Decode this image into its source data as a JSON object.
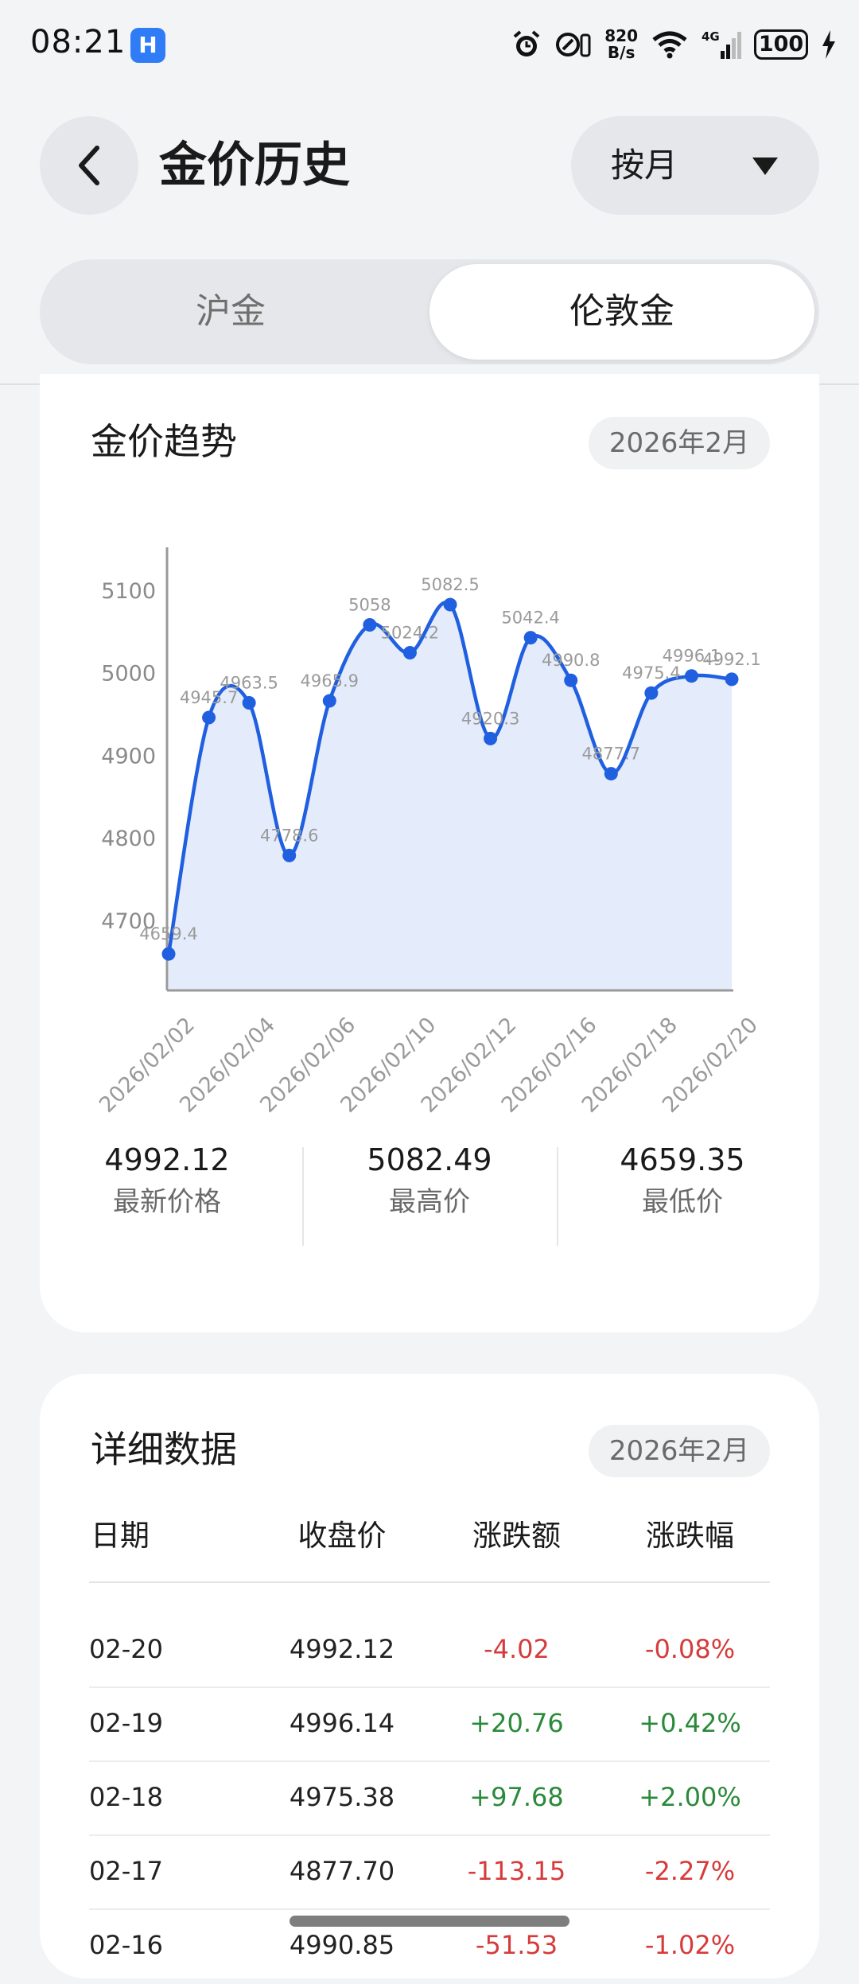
{
  "status_bar": {
    "time": "08:21",
    "net_speed_value": "820",
    "net_speed_unit": "B/s",
    "signal_label": "4G",
    "battery": "100"
  },
  "header": {
    "title": "金价历史",
    "period_label": "按月"
  },
  "tabs": [
    {
      "label": "沪金",
      "active": false
    },
    {
      "label": "伦敦金",
      "active": true
    }
  ],
  "trend_card": {
    "title": "金价趋势",
    "month": "2026年2月"
  },
  "chart_data": {
    "type": "area",
    "title": "",
    "xlabel": "",
    "ylabel": "",
    "ylim": [
      4620,
      5150
    ],
    "yticks": [
      4700,
      4800,
      4900,
      5000,
      5100
    ],
    "x_tick_labels": [
      "2026/02/02",
      "2026/02/04",
      "2026/02/06",
      "2026/02/10",
      "2026/02/12",
      "2026/02/16",
      "2026/02/18",
      "2026/02/20"
    ],
    "points": [
      {
        "x": "2026/02/02",
        "y": 4659.4,
        "label": "4659.4"
      },
      {
        "x": "2026/02/03",
        "y": 4945.7,
        "label": "4945.7"
      },
      {
        "x": "2026/02/04",
        "y": 4963.5,
        "label": "4963.5"
      },
      {
        "x": "2026/02/05",
        "y": 4778.6,
        "label": "4778.6"
      },
      {
        "x": "2026/02/06",
        "y": 4965.9,
        "label": "4965.9"
      },
      {
        "x": "2026/02/09",
        "y": 5058,
        "label": "5058"
      },
      {
        "x": "2026/02/10",
        "y": 5024.2,
        "label": "5024.2"
      },
      {
        "x": "2026/02/11",
        "y": 5082.5,
        "label": "5082.5"
      },
      {
        "x": "2026/02/12",
        "y": 4920.3,
        "label": "4920.3"
      },
      {
        "x": "2026/02/13",
        "y": 5042.4,
        "label": "5042.4"
      },
      {
        "x": "2026/02/16",
        "y": 4990.8,
        "label": "4990.8"
      },
      {
        "x": "2026/02/17",
        "y": 4877.7,
        "label": "4877.7"
      },
      {
        "x": "2026/02/18",
        "y": 4975.4,
        "label": "4975.4"
      },
      {
        "x": "2026/02/19",
        "y": 4996.1,
        "label": "4996.1"
      },
      {
        "x": "2026/02/20",
        "y": 4992.1,
        "label": "4992.1"
      }
    ],
    "line_color": "#1f5fe0",
    "fill_color": "#e4ebfb",
    "grid": false,
    "legend": "none"
  },
  "stats": [
    {
      "value": "4992.12",
      "label": "最新价格"
    },
    {
      "value": "5082.49",
      "label": "最高价"
    },
    {
      "value": "4659.35",
      "label": "最低价"
    }
  ],
  "detail_card": {
    "title": "详细数据",
    "month": "2026年2月",
    "headers": [
      "日期",
      "收盘价",
      "涨跌额",
      "涨跌幅"
    ],
    "rows": [
      {
        "date": "02-20",
        "close": "4992.12",
        "change": "-4.02",
        "pct": "-0.08%",
        "dir": "down"
      },
      {
        "date": "02-19",
        "close": "4996.14",
        "change": "+20.76",
        "pct": "+0.42%",
        "dir": "up"
      },
      {
        "date": "02-18",
        "close": "4975.38",
        "change": "+97.68",
        "pct": "+2.00%",
        "dir": "up"
      },
      {
        "date": "02-17",
        "close": "4877.70",
        "change": "-113.15",
        "pct": "-2.27%",
        "dir": "down"
      },
      {
        "date": "02-16",
        "close": "4990.85",
        "change": "-51.53",
        "pct": "-1.02%",
        "dir": "down"
      }
    ]
  },
  "colors": {
    "down": "#d63b3b",
    "up": "#2a8a3a",
    "accent": "#1f5fe0"
  }
}
